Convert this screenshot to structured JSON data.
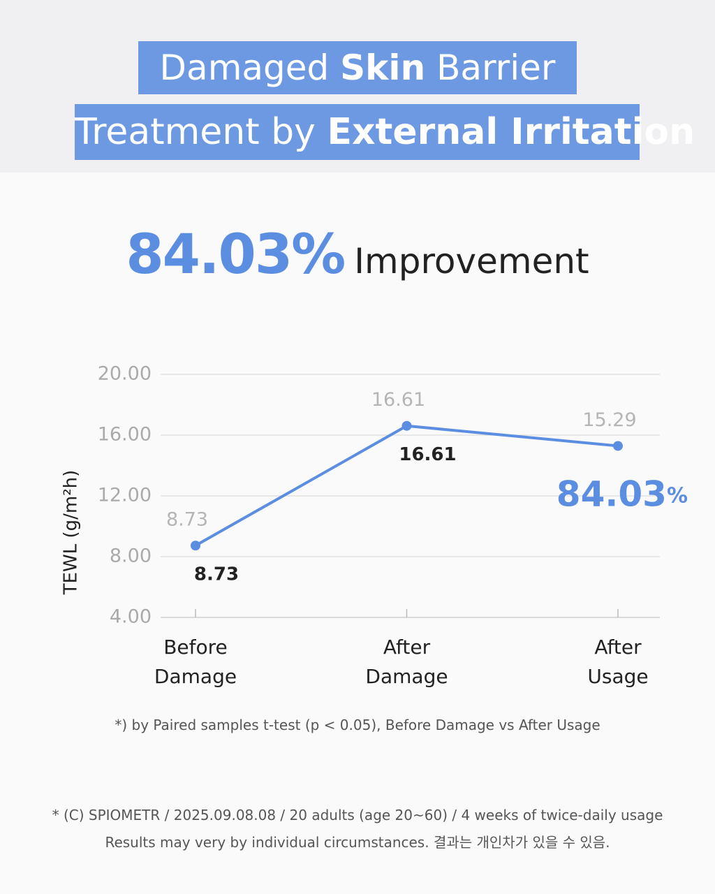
{
  "header": {
    "line1": [
      "Damaged ",
      "Skin",
      " Barrier"
    ],
    "line2": [
      "Treatment by ",
      "External Irritation"
    ]
  },
  "headline": {
    "value": "84.03",
    "unit": "%",
    "text": "Improvement"
  },
  "chart_data": {
    "type": "line",
    "y_label": "TEWL (g/m²h)",
    "categories": [
      "Before Damage",
      "After Damage",
      "After Usage"
    ],
    "values": [
      8.73,
      16.61,
      15.29
    ],
    "color": "#5b8ee0",
    "ylim": [
      4,
      20
    ],
    "yticks": [
      {
        "value": 20,
        "label": "20.00"
      },
      {
        "value": 16,
        "label": "16.00"
      },
      {
        "value": 12,
        "label": "12.00"
      },
      {
        "value": 8,
        "label": "8.00"
      },
      {
        "value": 4,
        "label": "4.00"
      }
    ],
    "grid": true
  },
  "notes": {
    "test": "*) by Paired samples t-test (p < 0.05), Before Damage vs After Usage",
    "source": "* (C) SPIOMETR / 2025.09.08.08 / 20 adults (age 20~60) / 4 weeks of twice-daily usage",
    "disclaimer": "Results may very by individual circumstances. 결과는 개인차가 있을 수 있음."
  }
}
